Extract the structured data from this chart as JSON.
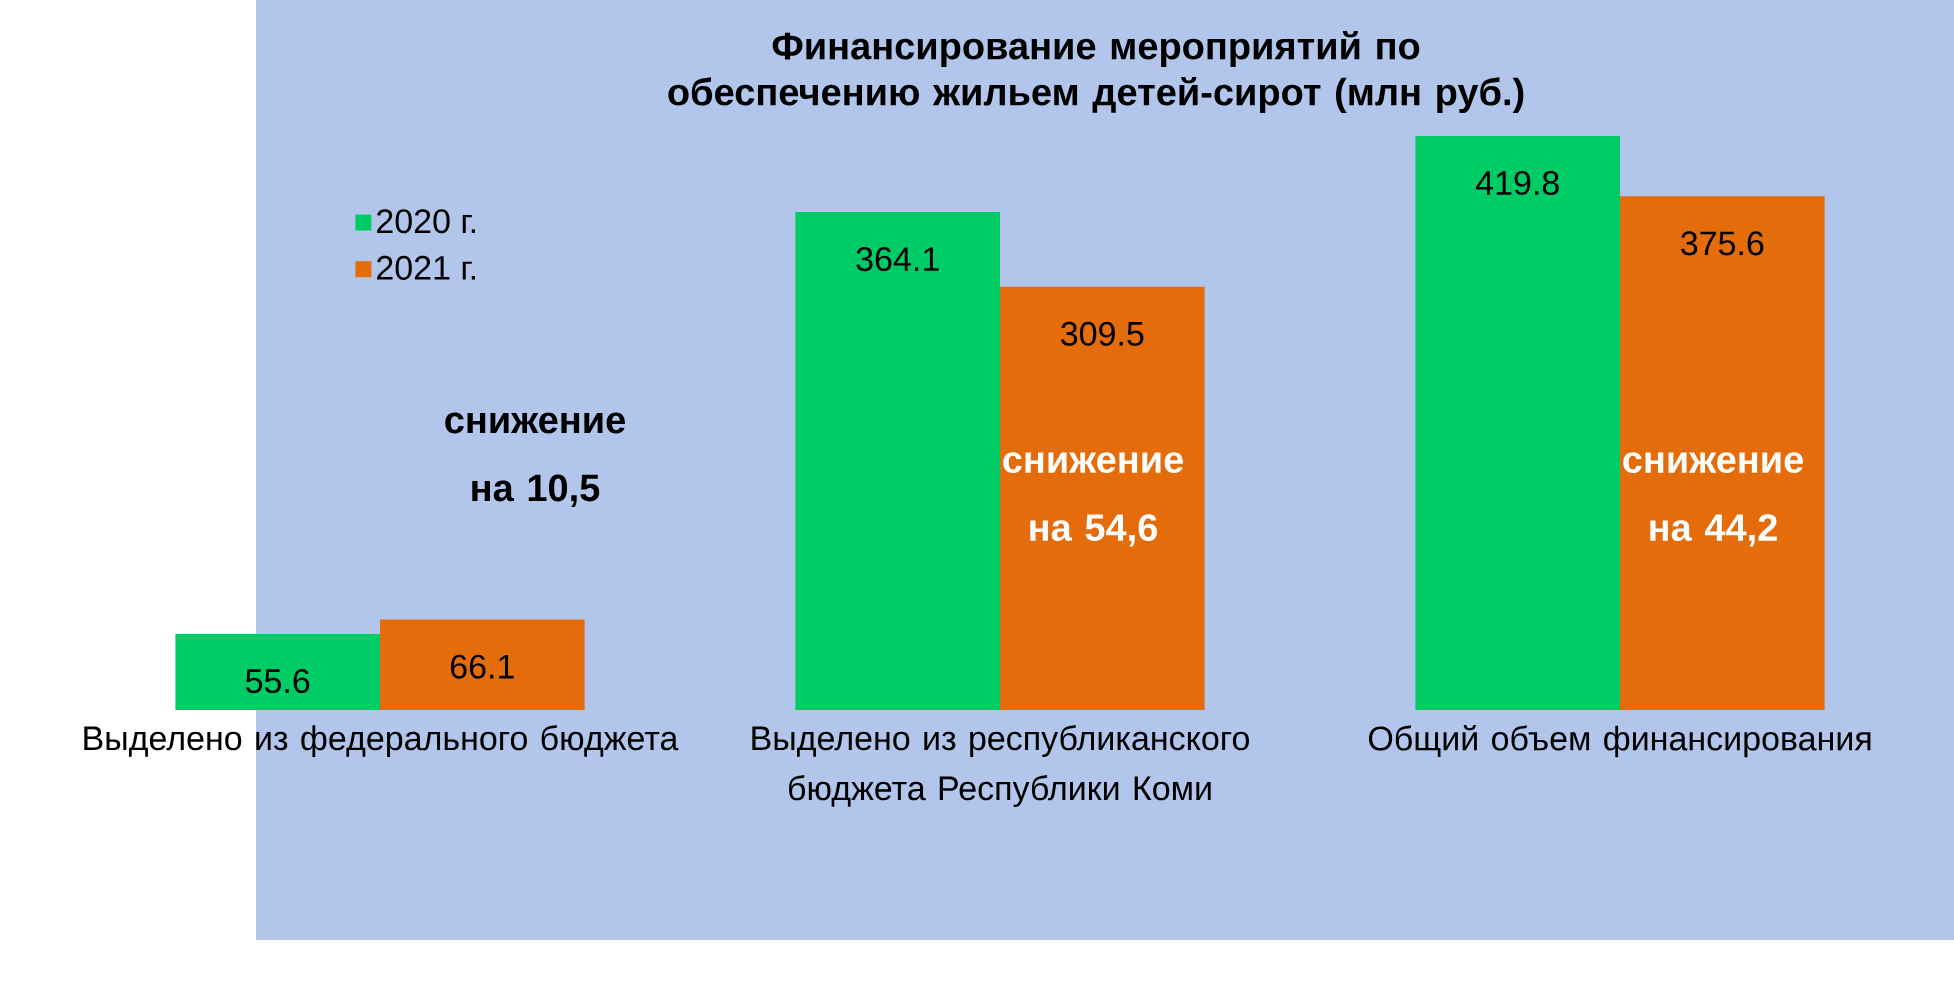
{
  "chart_data": {
    "type": "bar",
    "title": "Финансирование мероприятий по обеспечению жильем детей-сирот (млн руб.)",
    "categories": [
      "Выделено из федерального бюджета",
      "Выделено из республиканского бюджета Республики Коми",
      "Общий объем финансирования"
    ],
    "series": [
      {
        "name": "2020 г.",
        "color": "#00cc66",
        "values": [
          55.6,
          364.1,
          419.8
        ]
      },
      {
        "name": "2021 г.",
        "color": "#e46c0a",
        "values": [
          66.1,
          309.5,
          375.6
        ]
      }
    ],
    "data_labels": true,
    "legend": "top left",
    "annotations": [
      "снижение на 10,5",
      "снижение на 54,6",
      "снижение на 44,2"
    ]
  }
}
